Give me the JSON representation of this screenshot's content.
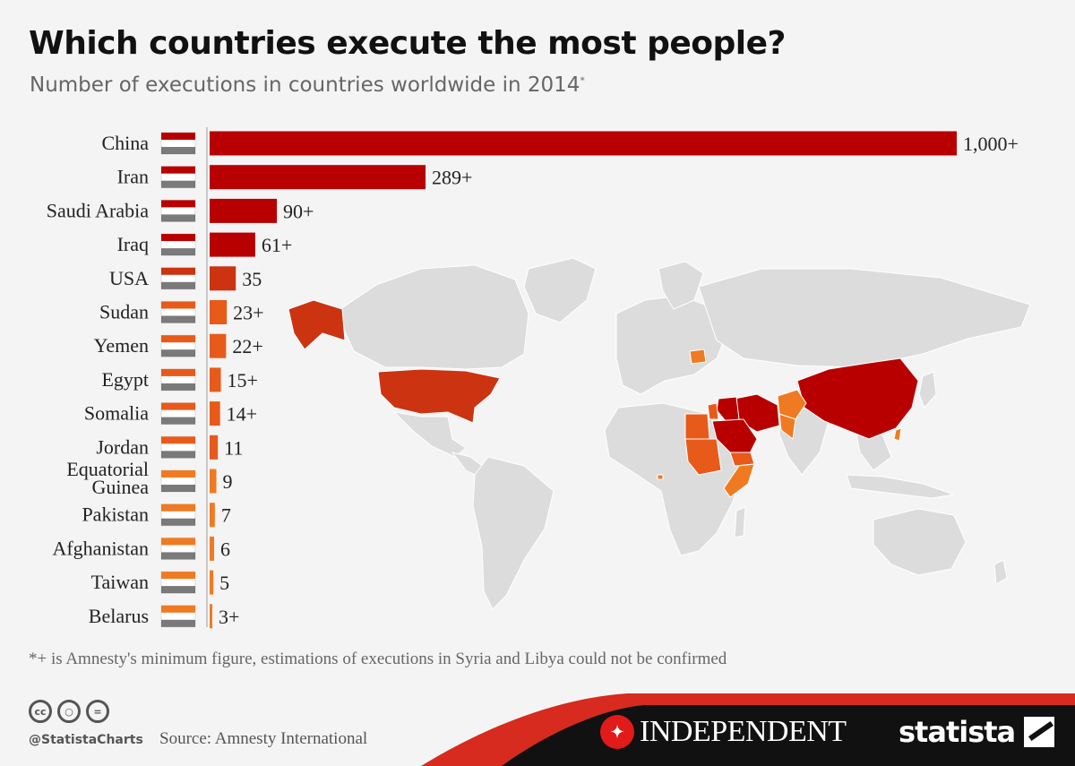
{
  "title": "Which countries execute the most people?",
  "subtitle": "Number of executions in countries worldwide in 2014",
  "subtitle_marker": "*",
  "chart_data": {
    "type": "bar",
    "orientation": "horizontal",
    "categories": [
      "China",
      "Iran",
      "Saudi Arabia",
      "Iraq",
      "USA",
      "Sudan",
      "Yemen",
      "Egypt",
      "Somalia",
      "Jordan",
      "Equatorial Guinea",
      "Pakistan",
      "Afghanistan",
      "Taiwan",
      "Belarus"
    ],
    "values": [
      1000,
      289,
      90,
      61,
      35,
      23,
      22,
      15,
      14,
      11,
      9,
      7,
      6,
      5,
      3
    ],
    "value_labels": [
      "1,000+",
      "289+",
      "90+",
      "61+",
      "35",
      "23+",
      "22+",
      "15+",
      "14+",
      "11",
      "9",
      "7",
      "6",
      "5",
      "3+"
    ],
    "xlim": [
      0,
      1000
    ],
    "colors": {
      "high": "#b80000",
      "medium": "#cc3311",
      "low": "#e85a1a",
      "lowest": "#f07a22",
      "map_land": "#dcdcdc",
      "footer_red": "#d62b1e",
      "footer_dark": "#111111"
    }
  },
  "footnote": "*+ is Amnesty's minimum figure, estimations of executions in Syria and Libya could not be confirmed",
  "license_icons": [
    "cc",
    "by",
    "nd"
  ],
  "handle": "@StatistaCharts",
  "source": "Source: Amnesty International",
  "publisher": "INDEPENDENT",
  "brand": "statista"
}
